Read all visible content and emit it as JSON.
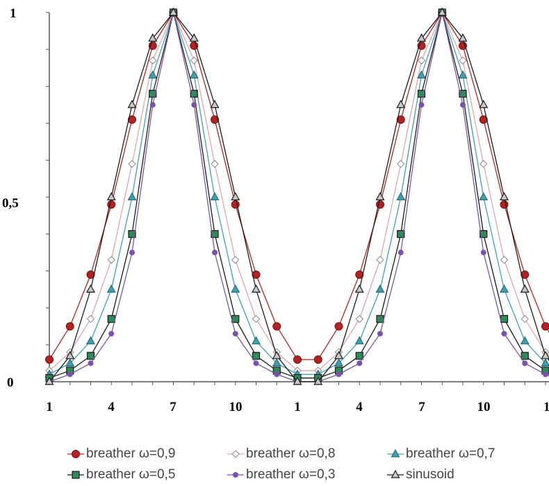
{
  "chart_data": {
    "type": "line",
    "x_tick_labels": [
      "1",
      "4",
      "7",
      "10",
      "1",
      "4",
      "7",
      "10",
      "1"
    ],
    "y_tick_labels": [
      "0",
      "0,5",
      "1"
    ],
    "ylim": [
      0,
      1
    ],
    "legend_position": "bottom",
    "grid": false,
    "x": [
      1,
      2,
      3,
      4,
      5,
      6,
      7,
      8,
      9,
      10,
      11,
      12,
      13,
      1,
      2,
      3,
      4,
      5,
      6,
      7,
      8,
      9,
      10,
      11,
      12,
      13,
      1
    ],
    "series": [
      {
        "name": "breather ω=0,9",
        "color": "#b22222",
        "line_color": "#b22222",
        "marker": "circle",
        "values": [
          0.06,
          0.15,
          0.29,
          0.48,
          0.71,
          0.91,
          1.0,
          0.91,
          0.71,
          0.48,
          0.29,
          0.15,
          0.06,
          0.06,
          0.15,
          0.29,
          0.48,
          0.71,
          0.91,
          1.0,
          0.91,
          0.71,
          0.48,
          0.29,
          0.15,
          0.06,
          0.06
        ]
      },
      {
        "name": "breather ω=0,8",
        "color": "#ffffff",
        "line_color": "#e0a6a6",
        "marker": "diamond",
        "values": [
          0.03,
          0.08,
          0.17,
          0.33,
          0.59,
          0.87,
          1.0,
          0.87,
          0.59,
          0.33,
          0.17,
          0.08,
          0.03,
          0.03,
          0.08,
          0.17,
          0.33,
          0.59,
          0.87,
          1.0,
          0.87,
          0.59,
          0.33,
          0.17,
          0.08,
          0.03,
          0.03
        ]
      },
      {
        "name": "breather ω=0,7",
        "color": "#40a0b0",
        "line_color": "#40a0b0",
        "marker": "triangle",
        "values": [
          0.02,
          0.05,
          0.11,
          0.25,
          0.5,
          0.83,
          1.0,
          0.83,
          0.5,
          0.25,
          0.11,
          0.05,
          0.02,
          0.02,
          0.05,
          0.11,
          0.25,
          0.5,
          0.83,
          1.0,
          0.83,
          0.5,
          0.25,
          0.11,
          0.05,
          0.02,
          0.02
        ]
      },
      {
        "name": "breather ω=0,5",
        "color": "#2e8b57",
        "line_color": "#1a1a1a",
        "marker": "square",
        "values": [
          0.01,
          0.03,
          0.07,
          0.17,
          0.4,
          0.78,
          1.0,
          0.78,
          0.4,
          0.17,
          0.07,
          0.03,
          0.01,
          0.01,
          0.03,
          0.07,
          0.17,
          0.4,
          0.78,
          1.0,
          0.78,
          0.4,
          0.17,
          0.07,
          0.03,
          0.01,
          0.01
        ]
      },
      {
        "name": "breather ω=0,3",
        "color": "#7b52ab",
        "line_color": "#7b52ab",
        "marker": "smallcircle",
        "values": [
          0.0,
          0.02,
          0.05,
          0.13,
          0.35,
          0.75,
          1.0,
          0.75,
          0.35,
          0.13,
          0.05,
          0.02,
          0.0,
          0.0,
          0.02,
          0.05,
          0.13,
          0.35,
          0.75,
          1.0,
          0.75,
          0.35,
          0.13,
          0.05,
          0.02,
          0.0,
          0.0
        ]
      },
      {
        "name": "sinusoid",
        "color": "#c8c8c8",
        "line_color": "#1a1a1a",
        "marker": "triangle",
        "values": [
          0.0,
          0.07,
          0.25,
          0.5,
          0.75,
          0.93,
          1.0,
          0.93,
          0.75,
          0.5,
          0.25,
          0.07,
          0.0,
          0.0,
          0.07,
          0.25,
          0.5,
          0.75,
          0.93,
          1.0,
          0.93,
          0.75,
          0.5,
          0.25,
          0.07,
          0.0,
          0.0
        ]
      }
    ]
  }
}
